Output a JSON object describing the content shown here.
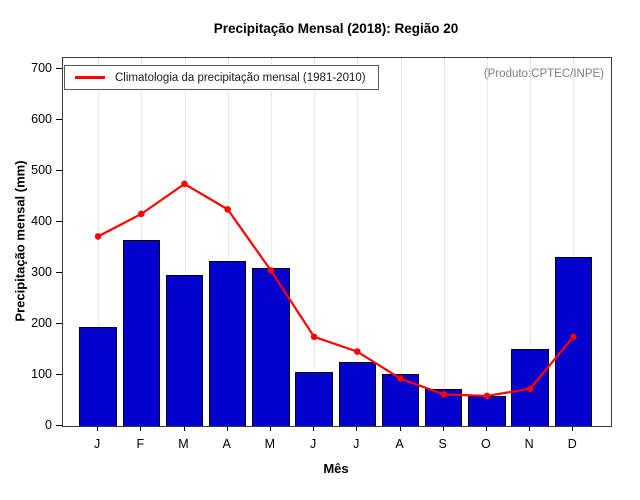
{
  "chart_data": {
    "type": "bar",
    "title": "Precipitação Mensal (2018): Região 20",
    "xlabel": "Mês",
    "ylabel": "Precipitação mensal (mm)",
    "categories": [
      "J",
      "F",
      "M",
      "A",
      "M",
      "J",
      "J",
      "A",
      "S",
      "O",
      "N",
      "D"
    ],
    "series": [
      {
        "name": "Precipitação mensal (2018)",
        "type": "bar",
        "values": [
          195,
          365,
          296,
          324,
          310,
          105,
          126,
          103,
          73,
          58,
          151,
          332
        ]
      },
      {
        "name": "Climatologia da precipitação mensal (1981-2010)",
        "type": "line",
        "values": [
          372,
          416,
          475,
          425,
          305,
          175,
          146,
          93,
          62,
          59,
          73,
          175
        ]
      }
    ],
    "yticks": [
      0,
      100,
      200,
      300,
      400,
      500,
      600,
      700
    ],
    "ylim": [
      0,
      722
    ],
    "grid": "vertical-dotted",
    "legend_position": "top-left",
    "colors": {
      "bar_fill": "#0202ce",
      "bar_border": "#000000",
      "line": "#ff0000",
      "grid": "#d4d4d4",
      "annotation_text": "#7f7f7f"
    }
  },
  "legend": {
    "label": "Climatologia da precipitação mensal (1981-2010)"
  },
  "annotation": {
    "text": "(Produto:CPTEC/INPE)"
  }
}
